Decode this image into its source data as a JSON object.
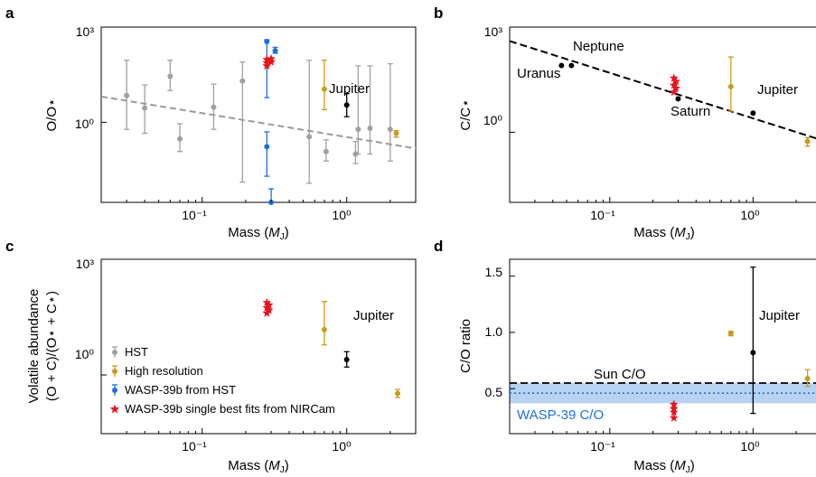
{
  "colors": {
    "hst": "#a0a0a0",
    "high_res": "#c89a1f",
    "wasp_hst": "#1e6fd9",
    "nircam": "#e8141c",
    "solar_system": "#000000",
    "trend": "#9a9a9a",
    "band": "#b8d2f3",
    "wasp_text": "#1e6fd9"
  },
  "chart_data": [
    {
      "panel": "a",
      "type": "scatter",
      "xscale": "log",
      "yscale": "log",
      "xlim": [
        0.02,
        3
      ],
      "ylim": [
        0.003,
        1000
      ],
      "xlabel": "Mass (M_J)",
      "ylabel": "O/O⋆",
      "xticks": [
        "10⁻¹",
        "10⁰"
      ],
      "yticks": [
        "10⁰",
        "10³"
      ],
      "annotations": [
        {
          "text": "Jupiter"
        }
      ],
      "trend": {
        "x": [
          0.02,
          3
        ],
        "y": [
          6.5,
          0.15
        ]
      },
      "series": [
        {
          "name": "HST",
          "points": [
            {
              "x": 0.03,
              "y": 7,
              "lo": 0.6,
              "hi": 90
            },
            {
              "x": 0.04,
              "y": 2.8,
              "lo": 0.45,
              "hi": 15
            },
            {
              "x": 0.06,
              "y": 28,
              "lo": 10,
              "hi": 90
            },
            {
              "x": 0.07,
              "y": 0.3,
              "lo": 0.12,
              "hi": 0.9
            },
            {
              "x": 0.12,
              "y": 3,
              "lo": 0.6,
              "hi": 16
            },
            {
              "x": 0.19,
              "y": 20,
              "lo": 0.013,
              "hi": 80
            },
            {
              "x": 0.55,
              "y": 0.35,
              "lo": 0.012,
              "hi": 90
            },
            {
              "x": 0.72,
              "y": 0.12,
              "lo": 0.06,
              "hi": 0.28
            },
            {
              "x": 1.15,
              "y": 0.1,
              "lo": 0.05,
              "hi": 0.25
            },
            {
              "x": 1.2,
              "y": 0.6,
              "lo": 0.1,
              "hi": 60
            },
            {
              "x": 1.45,
              "y": 0.65,
              "lo": 0.1,
              "hi": 60
            },
            {
              "x": 2.0,
              "y": 0.6,
              "lo": 0.06,
              "hi": 70
            }
          ]
        },
        {
          "name": "High resolution",
          "points": [
            {
              "x": 0.7,
              "y": 11,
              "lo": 2.5,
              "hi": 90
            },
            {
              "x": 2.2,
              "y": 0.45,
              "lo": 0.34,
              "hi": 0.55
            }
          ]
        },
        {
          "name": "WASP-39b from HST",
          "points": [
            {
              "x": 0.28,
              "y": 350,
              "lo": 6,
              "hi": 400
            },
            {
              "x": 0.32,
              "y": 180,
              "lo": 150,
              "hi": 230
            },
            {
              "x": 0.28,
              "y": 0.17,
              "lo": 0.02,
              "hi": 0.5
            },
            {
              "x": 0.3,
              "y": 0.003,
              "lo": 0.003,
              "hi": 0.008
            }
          ]
        },
        {
          "name": "WASP-39b single best fits from NIRCam",
          "points": [
            {
              "x": 0.28,
              "y": 95
            },
            {
              "x": 0.28,
              "y": 75
            },
            {
              "x": 0.28,
              "y": 60
            },
            {
              "x": 0.3,
              "y": 100
            },
            {
              "x": 0.3,
              "y": 80
            }
          ]
        },
        {
          "name": "",
          "points": [
            {
              "x": 1.0,
              "y": 3.5,
              "lo": 1.5,
              "hi": 8
            }
          ]
        }
      ]
    },
    {
      "panel": "b",
      "type": "scatter",
      "xscale": "log",
      "yscale": "log",
      "xlim": [
        0.02,
        3
      ],
      "ylim": [
        0.01,
        1000
      ],
      "xlabel": "Mass (M_J)",
      "ylabel": "C/C⋆",
      "xticks": [
        "10⁻¹",
        "10⁰"
      ],
      "yticks": [
        "10⁰",
        "10³"
      ],
      "annotations": [
        {
          "text": "Neptune"
        },
        {
          "text": "Uranus"
        },
        {
          "text": "Saturn"
        },
        {
          "text": "Jupiter"
        }
      ],
      "trend": {
        "x": [
          0.02,
          3
        ],
        "y": [
          400,
          0.6
        ]
      },
      "series": [
        {
          "name": "Uranus",
          "points": [
            {
              "x": 0.046,
              "y": 80
            }
          ]
        },
        {
          "name": "Neptune",
          "points": [
            {
              "x": 0.054,
              "y": 80
            }
          ]
        },
        {
          "name": "Saturn",
          "points": [
            {
              "x": 0.3,
              "y": 9
            }
          ]
        },
        {
          "name": "Jupiter",
          "points": [
            {
              "x": 1.0,
              "y": 3.5
            }
          ]
        },
        {
          "name": "High resolution",
          "points": [
            {
              "x": 0.7,
              "y": 20,
              "lo": 4,
              "hi": 140
            },
            {
              "x": 2.4,
              "y": 0.55,
              "lo": 0.4,
              "hi": 0.7
            }
          ]
        },
        {
          "name": "WASP-39b single best fits from NIRCam",
          "points": [
            {
              "x": 0.28,
              "y": 35
            },
            {
              "x": 0.28,
              "y": 22
            },
            {
              "x": 0.28,
              "y": 14
            },
            {
              "x": 0.29,
              "y": 28
            },
            {
              "x": 0.29,
              "y": 18
            }
          ]
        }
      ]
    },
    {
      "panel": "c",
      "type": "scatter",
      "xscale": "log",
      "yscale": "log",
      "xlim": [
        0.02,
        3
      ],
      "ylim": [
        0.03,
        1000
      ],
      "xlabel": "Mass (M_J)",
      "ylabel_lines": [
        "Volatile abundance",
        "(O + C)/(O⋆ + C⋆)"
      ],
      "xticks": [
        "10⁻¹",
        "10⁰"
      ],
      "yticks": [
        "10⁰",
        "10³"
      ],
      "annotations": [
        {
          "text": "Jupiter"
        }
      ],
      "series": [
        {
          "name": "HST",
          "points": []
        },
        {
          "name": "High resolution",
          "points": [
            {
              "x": 0.7,
              "y": 15,
              "lo": 6,
              "hi": 80
            },
            {
              "x": 2.25,
              "y": 0.33,
              "lo": 0.26,
              "hi": 0.42
            }
          ]
        },
        {
          "name": "WASP-39b from HST",
          "points": []
        },
        {
          "name": "WASP-39b single best fits from NIRCam",
          "points": [
            {
              "x": 0.28,
              "y": 75
            },
            {
              "x": 0.28,
              "y": 55
            },
            {
              "x": 0.28,
              "y": 40
            },
            {
              "x": 0.29,
              "y": 65
            },
            {
              "x": 0.29,
              "y": 48
            }
          ]
        },
        {
          "name": "",
          "points": [
            {
              "x": 1.0,
              "y": 2.5,
              "lo": 1.6,
              "hi": 4
            }
          ]
        }
      ],
      "legend": {
        "placement": "lower-left",
        "entries": [
          {
            "label": "HST",
            "marker": "dot-err",
            "color_key": "hst"
          },
          {
            "label": "High resolution",
            "marker": "dot-err",
            "color_key": "high_res"
          },
          {
            "label": "WASP-39b from HST",
            "marker": "dot-err",
            "color_key": "wasp_hst"
          },
          {
            "label": "WASP-39b single best fits from NIRCam",
            "marker": "star",
            "color_key": "nircam"
          }
        ]
      }
    },
    {
      "panel": "d",
      "type": "scatter",
      "xscale": "log",
      "yscale": "linear",
      "xlim": [
        0.02,
        3
      ],
      "ylim": [
        0.1,
        1.65
      ],
      "xlabel": "Mass (M_J)",
      "ylabel": "C/O ratio",
      "xticks": [
        "10⁻¹",
        "10⁰"
      ],
      "yticks": [
        "0.5",
        "1.0",
        "1.5"
      ],
      "annotations": [
        {
          "text": "Jupiter"
        },
        {
          "text": "Sun C/O"
        },
        {
          "text": "WASP-39 C/O"
        }
      ],
      "sun_co": 0.55,
      "wasp39_co": {
        "center": 0.46,
        "lo": 0.37,
        "hi": 0.55
      },
      "series": [
        {
          "name": "Jupiter",
          "points": [
            {
              "x": 1.0,
              "y": 0.82,
              "lo": 0.28,
              "hi": 1.58
            }
          ]
        },
        {
          "name": "High resolution",
          "points": [
            {
              "x": 0.7,
              "y": 0.99,
              "lo": 0.97,
              "hi": 1.01
            },
            {
              "x": 2.4,
              "y": 0.59,
              "lo": 0.52,
              "hi": 0.67
            }
          ]
        },
        {
          "name": "WASP-39b single best fits from NIRCam",
          "points": [
            {
              "x": 0.28,
              "y": 0.36
            },
            {
              "x": 0.28,
              "y": 0.32
            },
            {
              "x": 0.28,
              "y": 0.29
            },
            {
              "x": 0.28,
              "y": 0.24
            }
          ]
        }
      ]
    }
  ],
  "text": {
    "panel_a": "a",
    "panel_b": "b",
    "panel_c": "c",
    "panel_d": "d",
    "xlabel_prefix": "Mass (",
    "xlabel_sym": "M",
    "xlabel_sub": "J",
    "xlabel_suffix": ")",
    "ylabel_a": "O/O⋆",
    "ylabel_b": "C/C⋆",
    "ylabel_c1": "Volatile abundance",
    "ylabel_c2": "(O + C)/(O⋆ + C⋆)",
    "ylabel_d": "C/O ratio",
    "tick_1e-1": "10⁻¹",
    "tick_1e0": "10⁰",
    "tick_1e3": "10³",
    "tick_0_5": "0.5",
    "tick_1_0": "1.0",
    "tick_1_5": "1.5",
    "ann_jupiter": "Jupiter",
    "ann_neptune": "Neptune",
    "ann_uranus": "Uranus",
    "ann_saturn": "Saturn",
    "ann_sun_co": "Sun C/O",
    "ann_wasp_co": "WASP-39 C/O",
    "legend_hst": "HST",
    "legend_highres": "High resolution",
    "legend_wasp_hst": "WASP-39b from HST",
    "legend_nircam": "WASP-39b single best fits from NIRCam"
  }
}
